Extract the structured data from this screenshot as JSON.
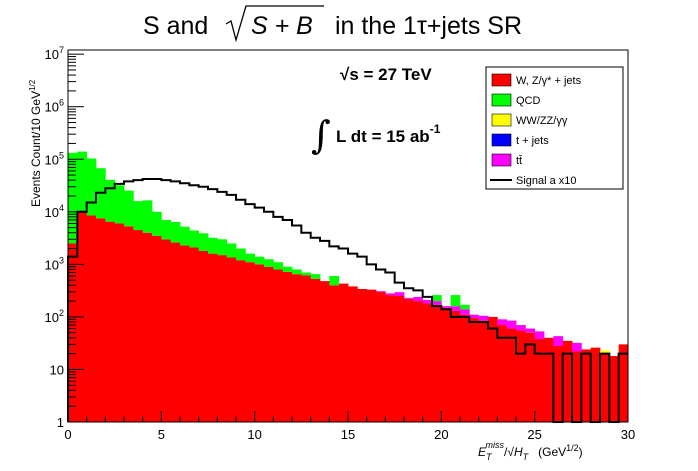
{
  "chart_data": {
    "type": "stacked-histogram",
    "title": "S and √S + B in the 1τ+jets SR",
    "title_parts": {
      "prefix": "S and ",
      "radicand": "S + B",
      "suffix": " in the 1τ+jets SR"
    },
    "xlabel": "E_T^miss/√H_T (GeV^1/2)",
    "xlabel_parts": {
      "main": "E",
      "sub": "T",
      "sup": "miss",
      "slash": "/√",
      "h": "H",
      "hsub": "T",
      "unit": "(GeV",
      "unit_sup": "1/2",
      "unit_close": ")"
    },
    "ylabel": "Events Count/10 GeV^1/2",
    "ylabel_parts": {
      "main": "Events Count/10 GeV",
      "sup": "1/2"
    },
    "xlim": [
      0,
      30
    ],
    "ylim": [
      1,
      12000000
    ],
    "yscale": "log",
    "x_ticks": [
      "0",
      "5",
      "10",
      "15",
      "20",
      "25",
      "30"
    ],
    "x_tick_values": [
      0,
      5,
      10,
      15,
      20,
      25,
      30
    ],
    "y_ticks": [
      {
        "value": 1,
        "base": "1",
        "exp": ""
      },
      {
        "value": 10,
        "base": "10",
        "exp": ""
      },
      {
        "value": 100,
        "base": "10",
        "exp": "2"
      },
      {
        "value": 1000,
        "base": "10",
        "exp": "3"
      },
      {
        "value": 10000,
        "base": "10",
        "exp": "4"
      },
      {
        "value": 100000,
        "base": "10",
        "exp": "5"
      },
      {
        "value": 1000000,
        "base": "10",
        "exp": "6"
      },
      {
        "value": 10000000,
        "base": "10",
        "exp": "7"
      }
    ],
    "bin_width": 0.5,
    "n_bins": 60,
    "annotations": {
      "energy": {
        "sqrt": "√",
        "text": "s = 27 TeV"
      },
      "lumi": {
        "integral": "∫",
        "text": "L dt = 15 ab",
        "sup": "-1"
      }
    },
    "legend": [
      {
        "label": "W, Z/γ* + jets",
        "color": "#ff0000",
        "type": "box"
      },
      {
        "label": "QCD",
        "color": "#00ff00",
        "type": "box"
      },
      {
        "label": "WW/ZZ/γγ",
        "color": "#ffff00",
        "type": "box"
      },
      {
        "label": "t + jets",
        "color": "#0000ff",
        "type": "box"
      },
      {
        "label": "tt̄",
        "color": "#ff00ff",
        "type": "box"
      },
      {
        "label": "Signal a x10",
        "color": "#000000",
        "type": "line"
      }
    ],
    "series": [
      {
        "name": "W, Z/γ* + jets",
        "color": "#ff0000",
        "values": [
          2500,
          10000,
          8500,
          7500,
          6500,
          6000,
          5300,
          4500,
          4000,
          3500,
          3000,
          2600,
          2300,
          2100,
          1800,
          1600,
          1500,
          1350,
          1200,
          1100,
          1000,
          900,
          800,
          720,
          650,
          620,
          530,
          480,
          400,
          430,
          380,
          340,
          330,
          300,
          260,
          250,
          220,
          200,
          180,
          170,
          150,
          130,
          110,
          95,
          85,
          100,
          70,
          60,
          55,
          50,
          38,
          40,
          28,
          35,
          22,
          24,
          26,
          20,
          18,
          30
        ]
      },
      {
        "name": "t + jets",
        "color": "#0000ff",
        "values": [
          0,
          0,
          0,
          0,
          0,
          0,
          0,
          0,
          0,
          0,
          0,
          0,
          0,
          0,
          0,
          0,
          0,
          0,
          0,
          0,
          0,
          0,
          0,
          0,
          0,
          0,
          0,
          0,
          0,
          0,
          0,
          0,
          0,
          0,
          0,
          0,
          0,
          0,
          0,
          0,
          0,
          0,
          0,
          0,
          0,
          0,
          0,
          0,
          0,
          0,
          0,
          0,
          0,
          0,
          0,
          0,
          0,
          0,
          0,
          0
        ]
      },
      {
        "name": "WW/ZZ/γγ",
        "color": "#ffff00",
        "values": [
          0,
          0,
          0,
          0,
          0,
          0,
          0,
          0,
          0,
          0,
          0,
          0,
          0,
          0,
          0,
          0,
          0,
          0,
          0,
          0,
          0,
          0,
          0,
          0,
          0,
          0,
          0,
          0,
          0,
          0,
          0,
          0,
          0,
          0,
          0,
          0,
          0,
          0,
          0,
          0,
          0,
          0,
          0,
          0,
          0,
          0,
          0,
          0,
          0,
          0,
          0,
          0,
          0,
          0,
          0,
          0,
          0,
          3,
          0,
          0
        ]
      },
      {
        "name": "tt̄",
        "color": "#ff00ff",
        "values": [
          0,
          0,
          0,
          0,
          0,
          0,
          0,
          0,
          0,
          0,
          0,
          0,
          0,
          0,
          0,
          0,
          0,
          0,
          0,
          0,
          0,
          0,
          0,
          0,
          0,
          0,
          0,
          0,
          0,
          0,
          0,
          0,
          0,
          10,
          20,
          45,
          10,
          40,
          30,
          30,
          10,
          30,
          30,
          15,
          20,
          0,
          20,
          25,
          15,
          10,
          15,
          0,
          15,
          0,
          10,
          0,
          0,
          0,
          0,
          0
        ]
      },
      {
        "name": "QCD",
        "color": "#00ff00",
        "values": [
          130000,
          130000,
          95000,
          60000,
          34000,
          26000,
          20000,
          11500,
          12500,
          6500,
          4000,
          3800,
          2900,
          2300,
          2100,
          1600,
          1500,
          1150,
          800,
          500,
          400,
          350,
          300,
          180,
          150,
          80,
          120,
          0,
          200,
          0,
          0,
          0,
          0,
          0,
          0,
          0,
          0,
          0,
          0,
          60,
          0,
          100,
          30,
          0,
          0,
          0,
          0,
          0,
          0,
          0,
          0,
          0,
          0,
          0,
          0,
          0,
          0,
          0,
          0,
          0
        ]
      }
    ],
    "signal": {
      "name": "Signal a x10",
      "color": "#000000",
      "values": [
        1400,
        10000,
        15000,
        23000,
        28000,
        34000,
        38000,
        40000,
        42000,
        42000,
        40000,
        38000,
        35000,
        32000,
        30000,
        27000,
        24000,
        21000,
        17000,
        14000,
        12000,
        10000,
        8000,
        7000,
        5500,
        4000,
        3200,
        2800,
        2200,
        2000,
        1600,
        1400,
        1000,
        800,
        700,
        450,
        350,
        320,
        240,
        160,
        140,
        100,
        100,
        80,
        80,
        60,
        40,
        40,
        20,
        30,
        20,
        20,
        1,
        20,
        1,
        20,
        1,
        20,
        1,
        20
      ]
    }
  }
}
